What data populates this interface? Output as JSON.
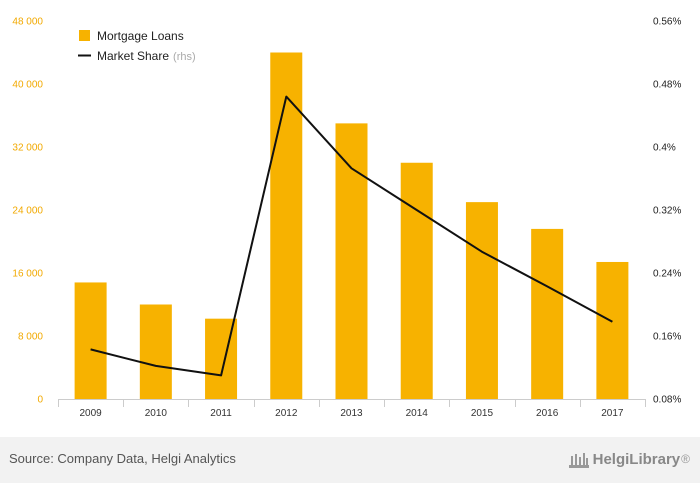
{
  "chart_data": {
    "type": "bar",
    "categories": [
      "2009",
      "2010",
      "2011",
      "2012",
      "2013",
      "2014",
      "2015",
      "2016",
      "2017"
    ],
    "series": [
      {
        "name": "Mortgage Loans",
        "type": "bar",
        "axis": "left",
        "color": "#f7b200",
        "values": [
          14800,
          12000,
          10200,
          44000,
          35000,
          30000,
          25000,
          21600,
          17400
        ]
      },
      {
        "name": "Market Share",
        "name_suffix": "(rhs)",
        "type": "line",
        "axis": "right",
        "color": "#111111",
        "values": [
          0.143,
          0.122,
          0.11,
          0.464,
          0.373,
          0.32,
          0.267,
          0.223,
          0.178
        ]
      }
    ],
    "y_left": {
      "ticks": [
        "0",
        "8 000",
        "16 000",
        "24 000",
        "32 000",
        "40 000",
        "48 000"
      ],
      "range": [
        0,
        48000
      ]
    },
    "y_right": {
      "ticks": [
        "0.08%",
        "0.16%",
        "0.24%",
        "0.32%",
        "0.4%",
        "0.48%",
        "0.56%"
      ],
      "range": [
        0.08,
        0.56
      ]
    },
    "legend_position": "top-left",
    "grid": false
  },
  "footer": {
    "source": "Source: Company Data, Helgi Analytics",
    "logo_text": "HelgiLibrary",
    "logo_suffix": "®"
  }
}
